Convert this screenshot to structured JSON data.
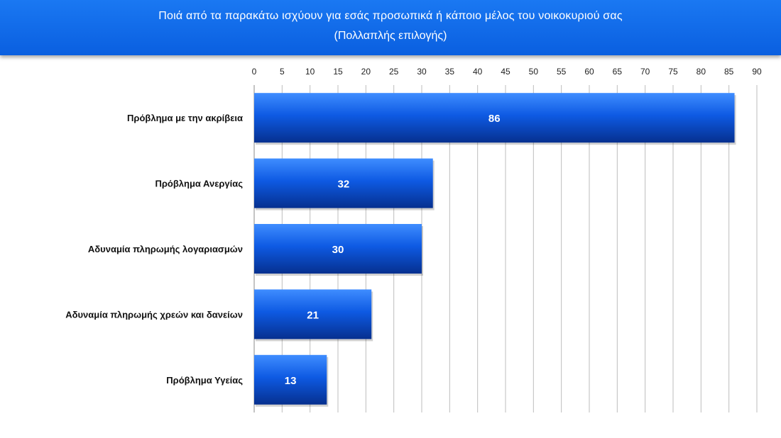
{
  "header": {
    "title_line1": "Ποιά από τα παρακάτω ισχύουν για εσάς προσωπικά ή κάποιο μέλος του νοικοκυριού σας",
    "title_line2": "(Πολλαπλής επιλογής)"
  },
  "colors": {
    "header_bg": "#0a66e8",
    "bar_top": "#3f8dff",
    "bar_mid": "#0e5ae3",
    "bar_bottom": "#06308f",
    "grid": "#bdbdbd"
  },
  "chart_data": {
    "type": "bar",
    "orientation": "horizontal",
    "title": "Ποιά από τα παρακάτω ισχύουν για εσάς προσωπικά ή κάποιο μέλος του νοικοκυριού σας (Πολλαπλής επιλογής)",
    "categories": [
      "Πρόβλημα με την ακρίβεια",
      "Πρόβλημα Ανεργίας",
      "Αδυναμία πληρωμής λογαριασμών",
      "Αδυναμία πληρωμής χρεών και δανείων",
      "Πρόβλημα Υγείας"
    ],
    "values": [
      86,
      32,
      30,
      21,
      13
    ],
    "xlim": [
      0,
      90
    ],
    "xticks": [
      0,
      5,
      10,
      15,
      20,
      25,
      30,
      35,
      40,
      45,
      50,
      55,
      60,
      65,
      70,
      75,
      80,
      85,
      90
    ],
    "axis_position": "top",
    "grid": true,
    "xlabel": "",
    "ylabel": ""
  }
}
